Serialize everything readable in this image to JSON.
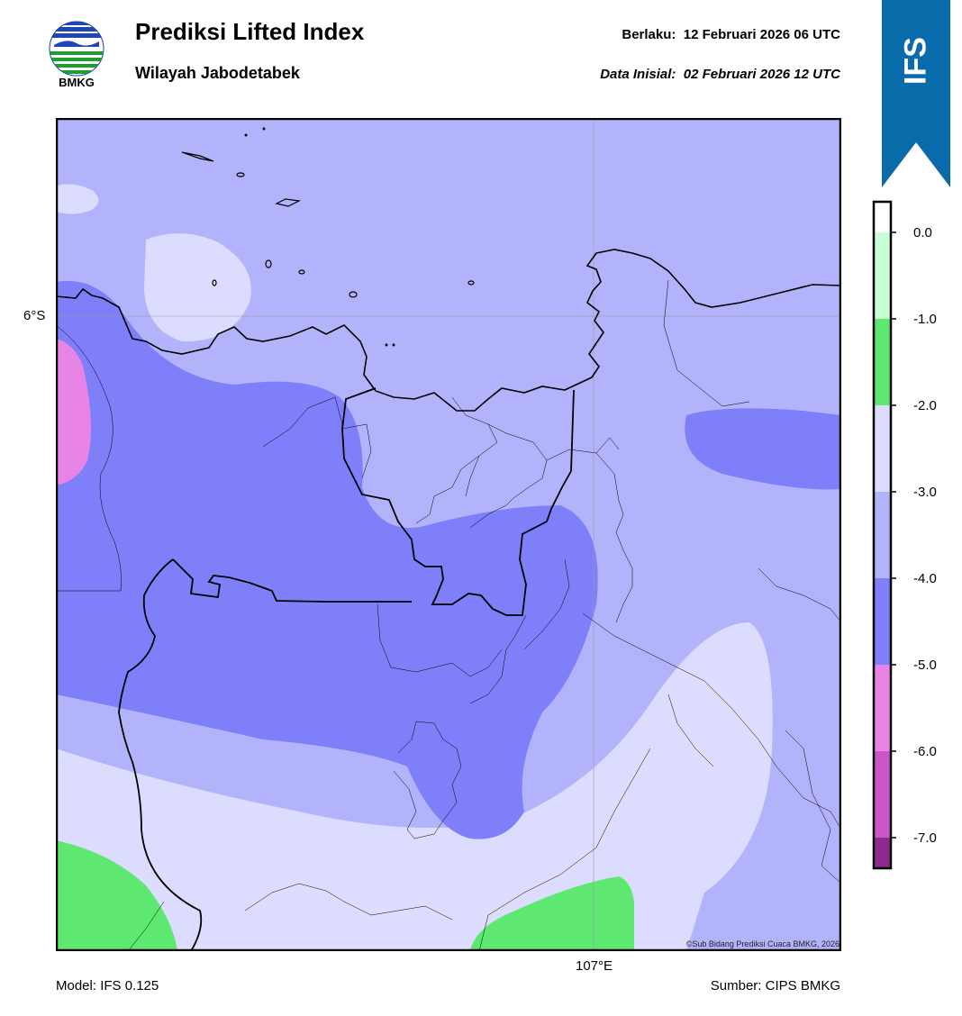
{
  "header": {
    "logo_text": "BMKG",
    "title": "Prediksi Lifted Index",
    "subtitle": "Wilayah Jabodetabek",
    "valid_label": "Berlaku:",
    "valid_value": "12 Februari 2026 06 UTC",
    "init_label": "Data Inisial:",
    "init_value": "02 Februari 2026 12 UTC",
    "ribbon_text": "IFS"
  },
  "map": {
    "lat_label": "6°S",
    "lon_label": "107°E",
    "copyright": "©Sub Bidang Prediksi Cuaca BMKG, 2026"
  },
  "colorbar": {
    "levels": [
      {
        "label": "0.0",
        "value": 0.0
      },
      {
        "label": "-1.0",
        "value": -1.0
      },
      {
        "label": "-2.0",
        "value": -2.0
      },
      {
        "label": "-3.0",
        "value": -3.0
      },
      {
        "label": "-4.0",
        "value": -4.0
      },
      {
        "label": "-5.0",
        "value": -5.0
      },
      {
        "label": "-6.0",
        "value": -6.0
      },
      {
        "label": "-7.0",
        "value": -7.0
      }
    ],
    "bands": [
      {
        "range": "> 0",
        "color": "#ffffff"
      },
      {
        "range": "0 to -1",
        "color": "#c7ffd7"
      },
      {
        "range": "-1 to -2",
        "color": "#5fe871"
      },
      {
        "range": "-2 to -3",
        "color": "#dcdcff"
      },
      {
        "range": "-3 to -4",
        "color": "#b3b3fb"
      },
      {
        "range": "-4 to -5",
        "color": "#7f7ff9"
      },
      {
        "range": "-5 to -6",
        "color": "#e884e6"
      },
      {
        "range": "-6 to -7",
        "color": "#cc55c8"
      },
      {
        "range": "< -7",
        "color": "#8e2a8e"
      }
    ]
  },
  "footer": {
    "model": "Model: IFS 0.125",
    "source": "Sumber: CIPS BMKG"
  }
}
